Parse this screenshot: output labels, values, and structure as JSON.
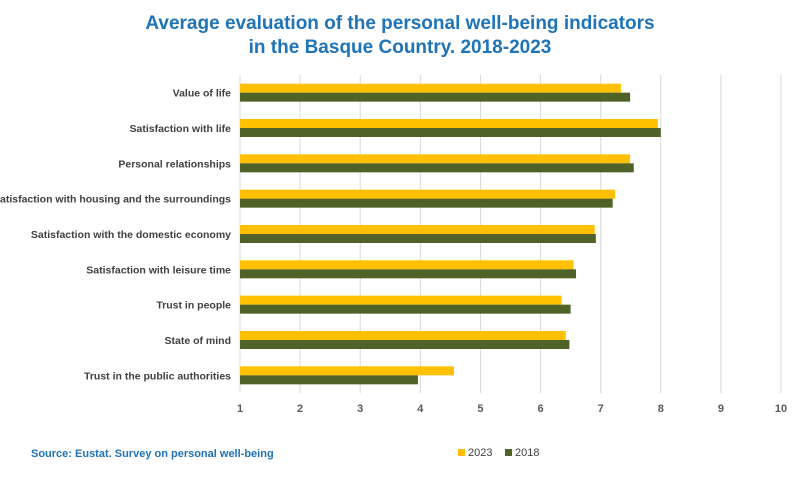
{
  "chart_data": {
    "type": "bar",
    "orientation": "horizontal",
    "title": "Average evaluation of the personal well-being indicators in the Basque Country. 2018-2023",
    "title_lines": [
      "Average evaluation of the personal well-being indicators",
      "in the Basque Country. 2018-2023"
    ],
    "categories": [
      "Value of life",
      "Satisfaction with life",
      "Personal relationships",
      "Satisfaction with housing and the surroundings",
      "Satisfaction with the domestic economy",
      "Satisfaction with leisure time",
      "Trust in people",
      "State of mind",
      "Trust in the public authorities"
    ],
    "series": [
      {
        "name": "2023",
        "color": "#ffc000",
        "values": [
          7.34,
          7.95,
          7.49,
          7.24,
          6.9,
          6.55,
          6.35,
          6.42,
          4.56
        ]
      },
      {
        "name": "2018",
        "color": "#4f6228",
        "values": [
          7.49,
          8.0,
          7.55,
          7.2,
          6.92,
          6.59,
          6.5,
          6.48,
          3.96
        ]
      }
    ],
    "xlim": [
      1,
      10
    ],
    "xticks": [
      "1",
      "2",
      "3",
      "4",
      "5",
      "6",
      "7",
      "8",
      "9",
      "10"
    ],
    "grid": true,
    "legend": "bottom",
    "source": "Source: Eustat. Survey on personal well-being"
  }
}
